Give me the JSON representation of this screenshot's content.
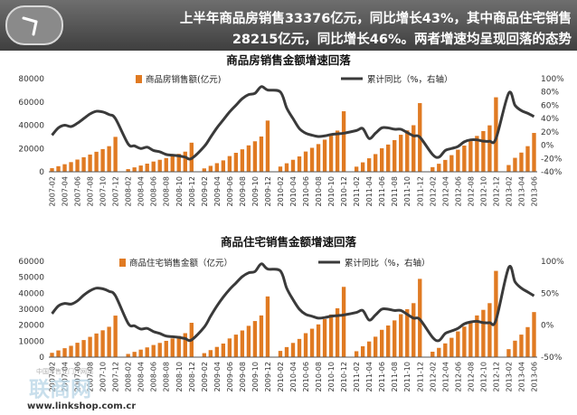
{
  "header": {
    "line1": "上半年商品房销售33376亿元，同比增长43%，其中商品住宅销售",
    "line2": "28215亿元，同比增长46%。两者增速均呈现回落的态势"
  },
  "watermark": {
    "line1": "中国零售业门户网站",
    "brand": "联商网",
    "site": "www.linkshop.com.cn"
  },
  "chart_data": [
    {
      "type": "bar+line",
      "title": "商品房销售金额增速回落",
      "x_tick_labels": [
        "2007-02",
        "2007-04",
        "2007-06",
        "2007-08",
        "2007-10",
        "2007-12",
        "2008-02",
        "2008-04",
        "2008-06",
        "2008-08",
        "2008-10",
        "2008-12",
        "2009-02",
        "2009-04",
        "2009-06",
        "2009-08",
        "2009-10",
        "2009-12",
        "2010-02",
        "2010-04",
        "2010-06",
        "2010-08",
        "2010-10",
        "2010-12",
        "2011-02",
        "2011-04",
        "2011-06",
        "2011-08",
        "2011-10",
        "2011-12",
        "2012-02",
        "2012-04",
        "2012-06",
        "2012-08",
        "2012-10",
        "2012-12",
        "2013-02",
        "2013-04",
        "2013-06"
      ],
      "left_axis": {
        "min": 0,
        "max": 80000,
        "ticks": [
          0,
          20000,
          40000,
          60000,
          80000
        ]
      },
      "right_axis": {
        "min": -40,
        "max": 100,
        "ticks": [
          "-40%",
          "-20%",
          "0%",
          "20%",
          "40%",
          "60%",
          "80%",
          "100%"
        ]
      },
      "series": [
        {
          "name": "商品房销售额(亿元)",
          "axis": "left",
          "color": "#e07a22",
          "x": [
            "2007-02",
            "2007-03",
            "2007-04",
            "2007-05",
            "2007-06",
            "2007-07",
            "2007-08",
            "2007-09",
            "2007-10",
            "2007-11",
            "2007-12",
            "2008-02",
            "2008-03",
            "2008-04",
            "2008-05",
            "2008-06",
            "2008-07",
            "2008-08",
            "2008-09",
            "2008-10",
            "2008-11",
            "2008-12",
            "2009-02",
            "2009-03",
            "2009-04",
            "2009-05",
            "2009-06",
            "2009-07",
            "2009-08",
            "2009-09",
            "2009-10",
            "2009-11",
            "2009-12",
            "2010-02",
            "2010-03",
            "2010-04",
            "2010-05",
            "2010-06",
            "2010-07",
            "2010-08",
            "2010-09",
            "2010-10",
            "2010-11",
            "2010-12",
            "2011-02",
            "2011-03",
            "2011-04",
            "2011-05",
            "2011-06",
            "2011-07",
            "2011-08",
            "2011-09",
            "2011-10",
            "2011-11",
            "2011-12",
            "2012-02",
            "2012-03",
            "2012-04",
            "2012-05",
            "2012-06",
            "2012-07",
            "2012-08",
            "2012-09",
            "2012-10",
            "2012-11",
            "2012-12",
            "2013-02",
            "2013-03",
            "2013-04",
            "2013-05",
            "2013-06"
          ],
          "values": [
            3100,
            4800,
            6500,
            8300,
            10500,
            12500,
            14800,
            17200,
            19500,
            22000,
            30000,
            2300,
            3800,
            5400,
            7000,
            8800,
            10300,
            11800,
            13600,
            15400,
            17300,
            25000,
            2900,
            5100,
            7400,
            9800,
            13500,
            16300,
            19300,
            22700,
            26200,
            30300,
            44000,
            4500,
            7300,
            10300,
            13200,
            17400,
            20600,
            23800,
            27600,
            31000,
            35400,
            52000,
            4400,
            8100,
            11600,
            15200,
            20200,
            23400,
            27200,
            31800,
            35600,
            40000,
            59000,
            4000,
            6900,
            10200,
            14300,
            19000,
            22500,
            26300,
            30800,
            35000,
            39900,
            64000,
            5800,
            12000,
            16500,
            22000,
            33376
          ]
        },
        {
          "name": "累计同比（%，右轴）",
          "axis": "right",
          "color": "#3a3a3a",
          "x": [
            "2007-02",
            "2007-03",
            "2007-04",
            "2007-05",
            "2007-06",
            "2007-07",
            "2007-08",
            "2007-09",
            "2007-10",
            "2007-11",
            "2007-12",
            "2008-02",
            "2008-03",
            "2008-04",
            "2008-05",
            "2008-06",
            "2008-07",
            "2008-08",
            "2008-09",
            "2008-10",
            "2008-11",
            "2008-12",
            "2009-02",
            "2009-03",
            "2009-04",
            "2009-05",
            "2009-06",
            "2009-07",
            "2009-08",
            "2009-09",
            "2009-10",
            "2009-11",
            "2009-12",
            "2010-02",
            "2010-03",
            "2010-04",
            "2010-05",
            "2010-06",
            "2010-07",
            "2010-08",
            "2010-09",
            "2010-10",
            "2010-11",
            "2010-12",
            "2011-02",
            "2011-03",
            "2011-04",
            "2011-05",
            "2011-06",
            "2011-07",
            "2011-08",
            "2011-09",
            "2011-10",
            "2011-11",
            "2011-12",
            "2012-02",
            "2012-03",
            "2012-04",
            "2012-05",
            "2012-06",
            "2012-07",
            "2012-08",
            "2012-09",
            "2012-10",
            "2012-11",
            "2012-12",
            "2013-02",
            "2013-03",
            "2013-04",
            "2013-05",
            "2013-06"
          ],
          "values": [
            15,
            26,
            30,
            28,
            33,
            40,
            47,
            51,
            50,
            46,
            40,
            2,
            -1,
            -5,
            -3,
            -8,
            -10,
            -14,
            -15,
            -16,
            -18,
            -20,
            -2,
            12,
            26,
            38,
            50,
            60,
            70,
            76,
            78,
            88,
            83,
            80,
            56,
            40,
            25,
            18,
            15,
            13,
            14,
            16,
            17,
            18,
            22,
            25,
            10,
            18,
            26,
            26,
            24,
            24,
            19,
            14,
            12,
            -14,
            -18,
            -8,
            -5,
            -2,
            5,
            8,
            8,
            6,
            6,
            10,
            78,
            60,
            52,
            48,
            43
          ]
        }
      ]
    },
    {
      "type": "bar+line",
      "title": "商品住宅销售金额增速回落",
      "x_tick_labels": [
        "2007-02",
        "2007-04",
        "2007-06",
        "2007-08",
        "2007-10",
        "2007-12",
        "2008-02",
        "2008-04",
        "2008-06",
        "2008-08",
        "2008-10",
        "2008-12",
        "2009-02",
        "2009-04",
        "2009-06",
        "2009-08",
        "2009-10",
        "2009-12",
        "2010-02",
        "2010-04",
        "2010-06",
        "2010-08",
        "2010-10",
        "2010-12",
        "2011-02",
        "2011-04",
        "2011-06",
        "2011-08",
        "2011-10",
        "2011-12",
        "2012-02",
        "2012-04",
        "2012-06",
        "2012-08",
        "2012-10",
        "2012-12",
        "2013-02",
        "2013-04",
        "2013-06"
      ],
      "left_axis": {
        "min": 0,
        "max": 60000,
        "ticks": [
          0,
          10000,
          20000,
          30000,
          40000,
          50000,
          60000
        ]
      },
      "right_axis": {
        "min": -50,
        "max": 100,
        "ticks": [
          "-50%",
          "0%",
          "50%",
          "100%"
        ]
      },
      "series": [
        {
          "name": "商品住宅销售金额（亿元）",
          "axis": "left",
          "color": "#e07a22",
          "x": [
            "2007-02",
            "2007-03",
            "2007-04",
            "2007-05",
            "2007-06",
            "2007-07",
            "2007-08",
            "2007-09",
            "2007-10",
            "2007-11",
            "2007-12",
            "2008-02",
            "2008-03",
            "2008-04",
            "2008-05",
            "2008-06",
            "2008-07",
            "2008-08",
            "2008-09",
            "2008-10",
            "2008-11",
            "2008-12",
            "2009-02",
            "2009-03",
            "2009-04",
            "2009-05",
            "2009-06",
            "2009-07",
            "2009-08",
            "2009-09",
            "2009-10",
            "2009-11",
            "2009-12",
            "2010-02",
            "2010-03",
            "2010-04",
            "2010-05",
            "2010-06",
            "2010-07",
            "2010-08",
            "2010-09",
            "2010-10",
            "2010-11",
            "2010-12",
            "2011-02",
            "2011-03",
            "2011-04",
            "2011-05",
            "2011-06",
            "2011-07",
            "2011-08",
            "2011-09",
            "2011-10",
            "2011-11",
            "2011-12",
            "2012-02",
            "2012-03",
            "2012-04",
            "2012-05",
            "2012-06",
            "2012-07",
            "2012-08",
            "2012-09",
            "2012-10",
            "2012-11",
            "2012-12",
            "2013-02",
            "2013-03",
            "2013-04",
            "2013-05",
            "2013-06"
          ],
          "values": [
            2700,
            4200,
            5600,
            7100,
            9000,
            10700,
            12700,
            14800,
            16800,
            19000,
            26000,
            2000,
            3300,
            4700,
            6100,
            7600,
            8900,
            10200,
            11700,
            13300,
            15000,
            21500,
            2500,
            4400,
            6400,
            8500,
            11700,
            14100,
            16700,
            19600,
            22600,
            26100,
            38000,
            3900,
            6300,
            8900,
            11400,
            15000,
            17800,
            20500,
            23800,
            26700,
            30600,
            44000,
            3700,
            6800,
            9800,
            12800,
            17100,
            19800,
            23000,
            26900,
            30000,
            33800,
            49000,
            3400,
            5800,
            8600,
            12100,
            16100,
            19100,
            22300,
            26100,
            29600,
            33800,
            54000,
            5000,
            10300,
            14100,
            18800,
            28215
          ]
        },
        {
          "name": "累计同比（%，右轴）",
          "axis": "right",
          "color": "#3a3a3a",
          "x": [
            "2007-02",
            "2007-03",
            "2007-04",
            "2007-05",
            "2007-06",
            "2007-07",
            "2007-08",
            "2007-09",
            "2007-10",
            "2007-11",
            "2007-12",
            "2008-02",
            "2008-03",
            "2008-04",
            "2008-05",
            "2008-06",
            "2008-07",
            "2008-08",
            "2008-09",
            "2008-10",
            "2008-11",
            "2008-12",
            "2009-02",
            "2009-03",
            "2009-04",
            "2009-05",
            "2009-06",
            "2009-07",
            "2009-08",
            "2009-09",
            "2009-10",
            "2009-11",
            "2009-12",
            "2010-02",
            "2010-03",
            "2010-04",
            "2010-05",
            "2010-06",
            "2010-07",
            "2010-08",
            "2010-09",
            "2010-10",
            "2010-11",
            "2010-12",
            "2011-02",
            "2011-03",
            "2011-04",
            "2011-05",
            "2011-06",
            "2011-07",
            "2011-08",
            "2011-09",
            "2011-10",
            "2011-11",
            "2011-12",
            "2012-02",
            "2012-03",
            "2012-04",
            "2012-05",
            "2012-06",
            "2012-07",
            "2012-08",
            "2012-09",
            "2012-10",
            "2012-11",
            "2012-12",
            "2013-02",
            "2013-03",
            "2013-04",
            "2013-05",
            "2013-06"
          ],
          "values": [
            18,
            30,
            34,
            33,
            38,
            47,
            54,
            58,
            57,
            53,
            46,
            3,
            -1,
            -6,
            -5,
            -10,
            -13,
            -17,
            -18,
            -19,
            -21,
            -23,
            -3,
            14,
            30,
            44,
            56,
            66,
            76,
            82,
            84,
            96,
            88,
            85,
            58,
            40,
            25,
            17,
            14,
            11,
            12,
            14,
            15,
            16,
            20,
            23,
            8,
            16,
            25,
            25,
            23,
            23,
            17,
            11,
            9,
            -19,
            -24,
            -13,
            -9,
            -5,
            2,
            5,
            6,
            4,
            4,
            8,
            90,
            68,
            58,
            52,
            46
          ]
        }
      ]
    }
  ]
}
